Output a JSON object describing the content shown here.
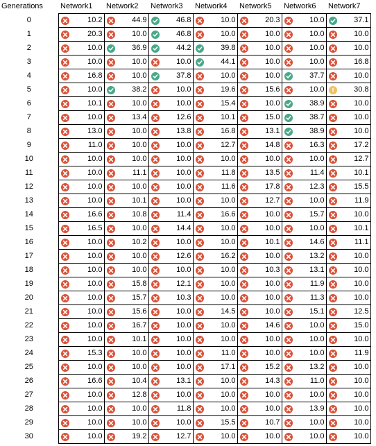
{
  "header": {
    "generations": "Generations",
    "networks": [
      "Network1",
      "Network2",
      "Network3",
      "Network4",
      "Network5",
      "Network6",
      "Network7"
    ]
  },
  "rows": [
    {
      "gen": "0",
      "cells": [
        [
          "x",
          "10.2"
        ],
        [
          "x",
          "44.9"
        ],
        [
          "v",
          "46.8"
        ],
        [
          "x",
          "10.0"
        ],
        [
          "x",
          "20.3"
        ],
        [
          "x",
          "10.0"
        ],
        [
          "v",
          "37.1"
        ]
      ]
    },
    {
      "gen": "1",
      "cells": [
        [
          "x",
          "20.3"
        ],
        [
          "x",
          "10.0"
        ],
        [
          "v",
          "46.8"
        ],
        [
          "x",
          "10.0"
        ],
        [
          "x",
          "10.0"
        ],
        [
          "x",
          "10.0"
        ],
        [
          "x",
          "10.0"
        ]
      ]
    },
    {
      "gen": "2",
      "cells": [
        [
          "x",
          "10.0"
        ],
        [
          "v",
          "36.9"
        ],
        [
          "v",
          "44.2"
        ],
        [
          "v",
          "39.8"
        ],
        [
          "x",
          "10.0"
        ],
        [
          "x",
          "10.0"
        ],
        [
          "x",
          "10.0"
        ]
      ]
    },
    {
      "gen": "3",
      "cells": [
        [
          "x",
          "10.0"
        ],
        [
          "x",
          "10.0"
        ],
        [
          "x",
          "10.0"
        ],
        [
          "v",
          "44.1"
        ],
        [
          "x",
          "10.0"
        ],
        [
          "x",
          "10.0"
        ],
        [
          "x",
          "16.8"
        ]
      ]
    },
    {
      "gen": "4",
      "cells": [
        [
          "x",
          "16.8"
        ],
        [
          "x",
          "10.0"
        ],
        [
          "v",
          "37.8"
        ],
        [
          "x",
          "10.0"
        ],
        [
          "x",
          "10.0"
        ],
        [
          "v",
          "37.7"
        ],
        [
          "x",
          "10.0"
        ]
      ]
    },
    {
      "gen": "5",
      "cells": [
        [
          "x",
          "10.0"
        ],
        [
          "v",
          "38.2"
        ],
        [
          "x",
          "10.0"
        ],
        [
          "x",
          "19.6"
        ],
        [
          "x",
          "15.6"
        ],
        [
          "x",
          "10.0"
        ],
        [
          "!",
          "30.8"
        ]
      ]
    },
    {
      "gen": "6",
      "cells": [
        [
          "x",
          "10.1"
        ],
        [
          "x",
          "10.0"
        ],
        [
          "x",
          "10.0"
        ],
        [
          "x",
          "15.4"
        ],
        [
          "x",
          "10.0"
        ],
        [
          "v",
          "38.9"
        ],
        [
          "x",
          "10.0"
        ]
      ]
    },
    {
      "gen": "7",
      "cells": [
        [
          "x",
          "10.0"
        ],
        [
          "x",
          "13.4"
        ],
        [
          "x",
          "12.6"
        ],
        [
          "x",
          "10.1"
        ],
        [
          "x",
          "15.0"
        ],
        [
          "v",
          "38.7"
        ],
        [
          "x",
          "10.0"
        ]
      ]
    },
    {
      "gen": "8",
      "cells": [
        [
          "x",
          "13.0"
        ],
        [
          "x",
          "10.0"
        ],
        [
          "x",
          "13.8"
        ],
        [
          "x",
          "16.8"
        ],
        [
          "x",
          "13.1"
        ],
        [
          "v",
          "38.9"
        ],
        [
          "x",
          "10.0"
        ]
      ]
    },
    {
      "gen": "9",
      "cells": [
        [
          "x",
          "11.0"
        ],
        [
          "x",
          "10.0"
        ],
        [
          "x",
          "10.0"
        ],
        [
          "x",
          "12.7"
        ],
        [
          "x",
          "14.8"
        ],
        [
          "x",
          "16.3"
        ],
        [
          "x",
          "17.2"
        ]
      ]
    },
    {
      "gen": "10",
      "cells": [
        [
          "x",
          "10.0"
        ],
        [
          "x",
          "10.0"
        ],
        [
          "x",
          "10.0"
        ],
        [
          "x",
          "10.0"
        ],
        [
          "x",
          "10.0"
        ],
        [
          "x",
          "10.0"
        ],
        [
          "x",
          "12.7"
        ]
      ]
    },
    {
      "gen": "11",
      "cells": [
        [
          "x",
          "10.0"
        ],
        [
          "x",
          "11.1"
        ],
        [
          "x",
          "10.0"
        ],
        [
          "x",
          "11.8"
        ],
        [
          "x",
          "13.5"
        ],
        [
          "x",
          "11.4"
        ],
        [
          "x",
          "10.1"
        ]
      ]
    },
    {
      "gen": "12",
      "cells": [
        [
          "x",
          "10.0"
        ],
        [
          "x",
          "10.0"
        ],
        [
          "x",
          "10.0"
        ],
        [
          "x",
          "11.6"
        ],
        [
          "x",
          "17.8"
        ],
        [
          "x",
          "12.3"
        ],
        [
          "x",
          "15.5"
        ]
      ]
    },
    {
      "gen": "13",
      "cells": [
        [
          "x",
          "10.0"
        ],
        [
          "x",
          "10.1"
        ],
        [
          "x",
          "10.0"
        ],
        [
          "x",
          "10.0"
        ],
        [
          "x",
          "12.7"
        ],
        [
          "x",
          "10.0"
        ],
        [
          "x",
          "11.9"
        ]
      ]
    },
    {
      "gen": "14",
      "cells": [
        [
          "x",
          "16.6"
        ],
        [
          "x",
          "10.8"
        ],
        [
          "x",
          "11.4"
        ],
        [
          "x",
          "16.6"
        ],
        [
          "x",
          "10.0"
        ],
        [
          "x",
          "15.7"
        ],
        [
          "x",
          "10.0"
        ]
      ]
    },
    {
      "gen": "15",
      "cells": [
        [
          "x",
          "16.5"
        ],
        [
          "x",
          "10.0"
        ],
        [
          "x",
          "14.4"
        ],
        [
          "x",
          "10.0"
        ],
        [
          "x",
          "10.0"
        ],
        [
          "x",
          "10.0"
        ],
        [
          "x",
          "10.1"
        ]
      ]
    },
    {
      "gen": "16",
      "cells": [
        [
          "x",
          "10.0"
        ],
        [
          "x",
          "10.2"
        ],
        [
          "x",
          "10.0"
        ],
        [
          "x",
          "10.0"
        ],
        [
          "x",
          "10.1"
        ],
        [
          "x",
          "14.6"
        ],
        [
          "x",
          "11.1"
        ]
      ]
    },
    {
      "gen": "17",
      "cells": [
        [
          "x",
          "10.0"
        ],
        [
          "x",
          "10.0"
        ],
        [
          "x",
          "12.6"
        ],
        [
          "x",
          "16.2"
        ],
        [
          "x",
          "10.0"
        ],
        [
          "x",
          "13.2"
        ],
        [
          "x",
          "10.0"
        ]
      ]
    },
    {
      "gen": "18",
      "cells": [
        [
          "x",
          "10.0"
        ],
        [
          "x",
          "10.0"
        ],
        [
          "x",
          "10.0"
        ],
        [
          "x",
          "10.0"
        ],
        [
          "x",
          "10.3"
        ],
        [
          "x",
          "13.1"
        ],
        [
          "x",
          "10.0"
        ]
      ]
    },
    {
      "gen": "19",
      "cells": [
        [
          "x",
          "10.0"
        ],
        [
          "x",
          "15.8"
        ],
        [
          "x",
          "12.1"
        ],
        [
          "x",
          "10.0"
        ],
        [
          "x",
          "10.0"
        ],
        [
          "x",
          "11.9"
        ],
        [
          "x",
          "10.0"
        ]
      ]
    },
    {
      "gen": "20",
      "cells": [
        [
          "x",
          "10.0"
        ],
        [
          "x",
          "15.7"
        ],
        [
          "x",
          "10.3"
        ],
        [
          "x",
          "10.0"
        ],
        [
          "x",
          "10.0"
        ],
        [
          "x",
          "11.3"
        ],
        [
          "x",
          "10.0"
        ]
      ]
    },
    {
      "gen": "21",
      "cells": [
        [
          "x",
          "10.0"
        ],
        [
          "x",
          "15.6"
        ],
        [
          "x",
          "10.0"
        ],
        [
          "x",
          "14.5"
        ],
        [
          "x",
          "10.0"
        ],
        [
          "x",
          "15.1"
        ],
        [
          "x",
          "12.5"
        ]
      ]
    },
    {
      "gen": "22",
      "cells": [
        [
          "x",
          "10.0"
        ],
        [
          "x",
          "16.7"
        ],
        [
          "x",
          "10.0"
        ],
        [
          "x",
          "10.0"
        ],
        [
          "x",
          "14.6"
        ],
        [
          "x",
          "10.0"
        ],
        [
          "x",
          "15.0"
        ]
      ]
    },
    {
      "gen": "23",
      "cells": [
        [
          "x",
          "10.0"
        ],
        [
          "x",
          "10.1"
        ],
        [
          "x",
          "10.0"
        ],
        [
          "x",
          "10.0"
        ],
        [
          "x",
          "10.0"
        ],
        [
          "x",
          "10.0"
        ],
        [
          "x",
          "10.0"
        ]
      ]
    },
    {
      "gen": "24",
      "cells": [
        [
          "x",
          "15.3"
        ],
        [
          "x",
          "10.0"
        ],
        [
          "x",
          "10.0"
        ],
        [
          "x",
          "11.0"
        ],
        [
          "x",
          "10.0"
        ],
        [
          "x",
          "10.0"
        ],
        [
          "x",
          "11.9"
        ]
      ]
    },
    {
      "gen": "25",
      "cells": [
        [
          "x",
          "10.0"
        ],
        [
          "x",
          "10.0"
        ],
        [
          "x",
          "10.0"
        ],
        [
          "x",
          "17.1"
        ],
        [
          "x",
          "15.2"
        ],
        [
          "x",
          "13.2"
        ],
        [
          "x",
          "10.0"
        ]
      ]
    },
    {
      "gen": "26",
      "cells": [
        [
          "x",
          "16.6"
        ],
        [
          "x",
          "10.4"
        ],
        [
          "x",
          "13.1"
        ],
        [
          "x",
          "10.0"
        ],
        [
          "x",
          "14.3"
        ],
        [
          "x",
          "11.0"
        ],
        [
          "x",
          "10.0"
        ]
      ]
    },
    {
      "gen": "27",
      "cells": [
        [
          "x",
          "10.0"
        ],
        [
          "x",
          "12.8"
        ],
        [
          "x",
          "10.0"
        ],
        [
          "x",
          "10.0"
        ],
        [
          "x",
          "10.0"
        ],
        [
          "x",
          "10.0"
        ],
        [
          "x",
          "10.0"
        ]
      ]
    },
    {
      "gen": "28",
      "cells": [
        [
          "x",
          "10.0"
        ],
        [
          "x",
          "10.0"
        ],
        [
          "x",
          "11.8"
        ],
        [
          "x",
          "10.0"
        ],
        [
          "x",
          "10.0"
        ],
        [
          "x",
          "13.9"
        ],
        [
          "x",
          "10.0"
        ]
      ]
    },
    {
      "gen": "29",
      "cells": [
        [
          "x",
          "10.0"
        ],
        [
          "x",
          "10.0"
        ],
        [
          "x",
          "10.0"
        ],
        [
          "x",
          "15.5"
        ],
        [
          "x",
          "10.7"
        ],
        [
          "x",
          "10.0"
        ],
        [
          "x",
          "10.0"
        ]
      ]
    },
    {
      "gen": "30",
      "cells": [
        [
          "x",
          "10.0"
        ],
        [
          "x",
          "19.2"
        ],
        [
          "x",
          "12.7"
        ],
        [
          "x",
          "10.0"
        ],
        [
          "x",
          "10.0"
        ],
        [
          "x",
          "10.0"
        ],
        [
          "x",
          "10.0"
        ]
      ]
    }
  ],
  "icons": {
    "x": {
      "name": "fail-icon",
      "color": "#d9533a"
    },
    "v": {
      "name": "check-icon",
      "color": "#4aa88a"
    },
    "!": {
      "name": "warning-icon",
      "color": "#f2c060"
    }
  }
}
